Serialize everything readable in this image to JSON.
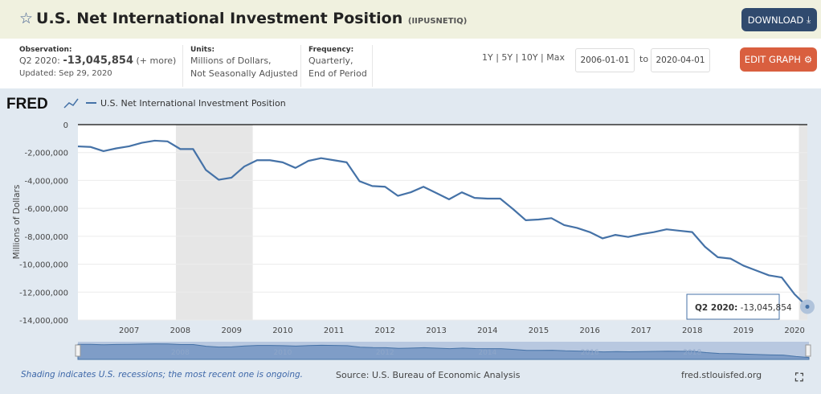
{
  "header": {
    "title": "U.S. Net International Investment Position",
    "series_id": "(IIPUSNETIQ)",
    "download_label": "DOWNLOAD"
  },
  "info": {
    "observation_label": "Observation:",
    "observation_period": "Q2 2020:",
    "observation_value": "-13,045,854",
    "more_link": "(+ more)",
    "updated": "Updated: Sep 29, 2020",
    "units_label": "Units:",
    "units_line1": "Millions of Dollars,",
    "units_line2": "Not Seasonally Adjusted",
    "frequency_label": "Frequency:",
    "frequency_line1": "Quarterly,",
    "frequency_line2": "End of Period"
  },
  "ranges": [
    "1Y",
    "5Y",
    "10Y",
    "Max"
  ],
  "date_from": "2006-01-01",
  "date_to_label": "to",
  "date_to": "2020-04-01",
  "edit_graph_label": "EDIT GRAPH",
  "logo": "FRED",
  "footer": {
    "recession_note": "Shading indicates U.S. recessions; the most recent one is ongoing.",
    "source": "Source: U.S. Bureau of Economic Analysis",
    "site": "fred.stlouisfed.org"
  },
  "tooltip": {
    "label": "Q2 2020:",
    "value": "-13,045,854"
  },
  "navigator_labels": [
    "2008",
    "2010",
    "2012",
    "2014",
    "2016",
    "2018"
  ],
  "colors": {
    "line": "#4572a7",
    "recession": "#e6e6e6",
    "download": "#304a6e",
    "edit": "#d95f3f"
  },
  "chart_data": {
    "type": "line",
    "title": "",
    "legend": [
      "U.S. Net International Investment Position"
    ],
    "legend_position": "top-left",
    "ylabel": "Millions of Dollars",
    "xlabel": "",
    "ylim": [
      -14000000,
      0
    ],
    "yticks": [
      0,
      -2000000,
      -4000000,
      -6000000,
      -8000000,
      -10000000,
      -12000000,
      -14000000
    ],
    "ytick_labels": [
      "0",
      "-2,000,000",
      "-4,000,000",
      "-6,000,000",
      "-8,000,000",
      "-10,000,000",
      "-12,000,000",
      "-14,000,000"
    ],
    "xticks": [
      "2007",
      "2008",
      "2009",
      "2010",
      "2011",
      "2012",
      "2013",
      "2014",
      "2015",
      "2016",
      "2017",
      "2018",
      "2019",
      "2020"
    ],
    "x_start": "2006-01-01",
    "x_end": "2020-04-01",
    "frequency": "quarterly",
    "recessions": [
      [
        "2007-12-01",
        "2009-06-01"
      ],
      [
        "2020-02-01",
        "2020-04-01"
      ]
    ],
    "series": [
      {
        "name": "U.S. Net International Investment Position",
        "values": [
          -1560000,
          -1600000,
          -1900000,
          -1700000,
          -1550000,
          -1300000,
          -1150000,
          -1200000,
          -1750000,
          -1750000,
          -3250000,
          -3950000,
          -3800000,
          -3000000,
          -2550000,
          -2550000,
          -2700000,
          -3100000,
          -2600000,
          -2400000,
          -2550000,
          -2700000,
          -4050000,
          -4400000,
          -4450000,
          -5100000,
          -4850000,
          -4450000,
          -4900000,
          -5350000,
          -4850000,
          -5250000,
          -5300000,
          -5300000,
          -6050000,
          -6850000,
          -6800000,
          -6700000,
          -7200000,
          -7400000,
          -7700000,
          -8150000,
          -7900000,
          -8050000,
          -7850000,
          -7700000,
          -7500000,
          -7600000,
          -7700000,
          -8750000,
          -9500000,
          -9600000,
          -10100000,
          -10450000,
          -10800000,
          -10950000,
          -12150000,
          -13045854
        ]
      }
    ]
  }
}
